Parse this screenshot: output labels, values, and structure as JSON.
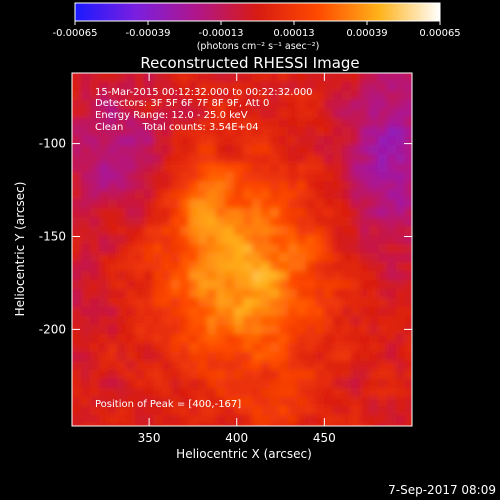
{
  "colorbar": {
    "tick_labels": [
      "-0.00065",
      "-0.00039",
      "-0.00013",
      "0.00013",
      "0.00039",
      "0.00065"
    ],
    "unit_label": "(photons cm⁻² s⁻¹ asec⁻²)",
    "range": [
      -0.00065,
      0.00065
    ],
    "stops": [
      "#1a1aff",
      "#7a1fe0",
      "#b0168a",
      "#d81b12",
      "#ff4a00",
      "#ffb21a",
      "#ffffff"
    ]
  },
  "chart_data": {
    "type": "heatmap",
    "title": "Reconstructed RHESSI Image",
    "xlabel": "Heliocentric X (arcsec)",
    "ylabel": "Heliocentric Y (arcsec)",
    "x_ticks": [
      350,
      400,
      450
    ],
    "y_ticks": [
      -100,
      -150,
      -200
    ],
    "xlim": [
      306,
      500
    ],
    "ylim": [
      -252,
      -62
    ],
    "peak": {
      "x": 400,
      "y": -167
    },
    "annotations": [
      "15-Mar-2015 00:12:32.000 to 00:22:32.000",
      "Detectors: 3F 5F 6F 7F 8F 9F, Att 0",
      "Energy Range: 12.0 - 25.0 keV",
      "Clean      Total counts: 3.54E+04"
    ],
    "peak_label": "Position of Peak = [400,-167]"
  },
  "footer": {
    "timestamp": "7-Sep-2017 08:09"
  }
}
